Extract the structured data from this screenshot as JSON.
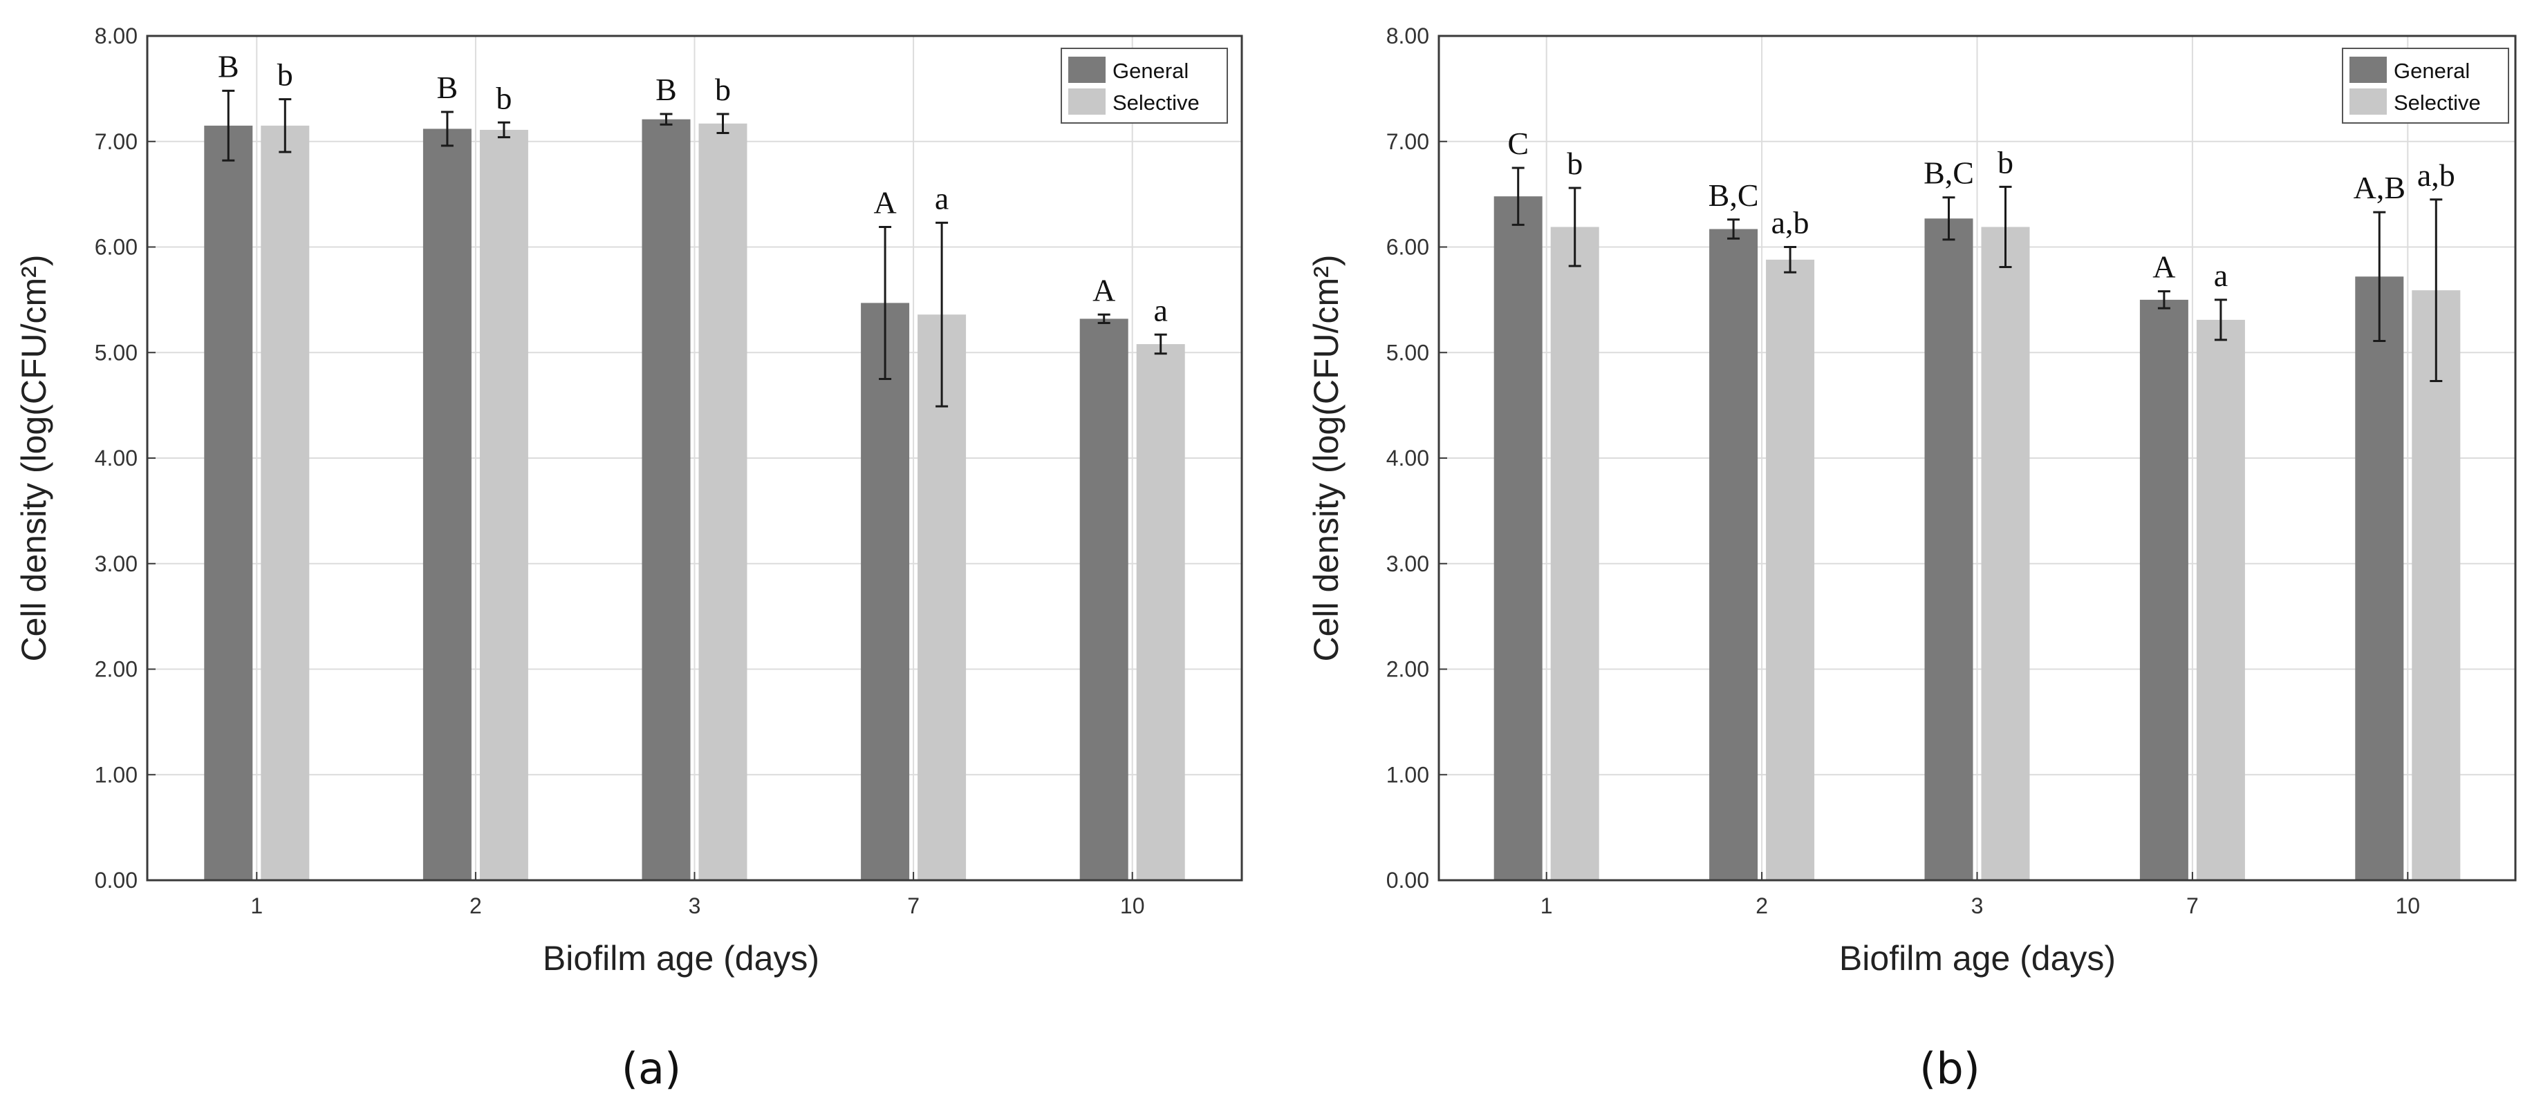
{
  "colors": {
    "general": "#7a7a7a",
    "selective": "#c8c8c8",
    "grid": "#dcdcdc",
    "axis": "#3a3a3a",
    "error": "#1a1a1a"
  },
  "chart_data": [
    {
      "type": "bar",
      "panel_label": "(a)",
      "xlabel": "Biofilm age (days)",
      "ylabel": "Cell density (log(CFU/cm²)",
      "ylim": [
        0,
        8
      ],
      "ytick_labels": [
        "0.00",
        "1.00",
        "2.00",
        "3.00",
        "4.00",
        "5.00",
        "6.00",
        "7.00",
        "8.00"
      ],
      "categories": [
        "1",
        "2",
        "3",
        "7",
        "10"
      ],
      "grid": true,
      "legend_position": "top-right",
      "series": [
        {
          "name": "General",
          "color_key": "general",
          "values": [
            7.15,
            7.12,
            7.21,
            5.47,
            5.32
          ],
          "errors": [
            0.33,
            0.16,
            0.05,
            0.72,
            0.04
          ],
          "letters": [
            "B",
            "B",
            "B",
            "A",
            "A"
          ]
        },
        {
          "name": "Selective",
          "color_key": "selective",
          "values": [
            7.15,
            7.11,
            7.17,
            5.36,
            5.08
          ],
          "errors": [
            0.25,
            0.07,
            0.09,
            0.87,
            0.09
          ],
          "letters": [
            "b",
            "b",
            "b",
            "a",
            "a"
          ]
        }
      ]
    },
    {
      "type": "bar",
      "panel_label": "(b)",
      "xlabel": "Biofilm age (days)",
      "ylabel": "Cell density (log(CFU/cm²)",
      "ylim": [
        0,
        8
      ],
      "ytick_labels": [
        "0.00",
        "1.00",
        "2.00",
        "3.00",
        "4.00",
        "5.00",
        "6.00",
        "7.00",
        "8.00"
      ],
      "categories": [
        "1",
        "2",
        "3",
        "7",
        "10"
      ],
      "grid": true,
      "legend_position": "top-right",
      "series": [
        {
          "name": "General",
          "color_key": "general",
          "values": [
            6.48,
            6.17,
            6.27,
            5.5,
            5.72
          ],
          "errors": [
            0.27,
            0.09,
            0.2,
            0.08,
            0.61
          ],
          "letters": [
            "C",
            "B,C",
            "B,C",
            "A",
            "A,B"
          ]
        },
        {
          "name": "Selective",
          "color_key": "selective",
          "values": [
            6.19,
            5.88,
            6.19,
            5.31,
            5.59
          ],
          "errors": [
            0.37,
            0.12,
            0.38,
            0.19,
            0.86
          ],
          "letters": [
            "b",
            "a,b",
            "b",
            "a",
            "a,b"
          ]
        }
      ]
    }
  ]
}
